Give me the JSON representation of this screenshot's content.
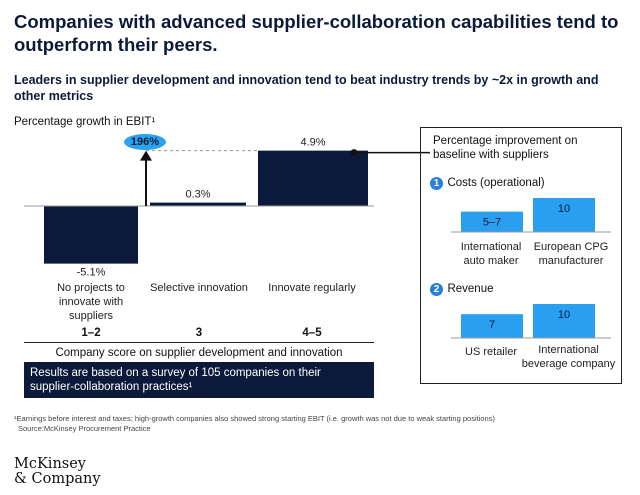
{
  "title": "Companies with advanced supplier-collaboration capabilities tend to outperform their peers.",
  "subtitle": "Leaders in supplier development and innovation tend to beat industry trends by ~2x in growth and other metrics",
  "colors": {
    "navy": "#0b1a3a",
    "accent_blue": "#2aa3ee",
    "panel_bar": "#2a9ff0"
  },
  "chart_data": [
    {
      "type": "bar",
      "ylabel": "Percentage growth in EBIT¹",
      "categories": [
        "No projects to innovate with suppliers",
        "Selective innovation",
        "Innovate regularly"
      ],
      "scores": [
        "1–2",
        "3",
        "4–5"
      ],
      "values": [
        -5.1,
        0.3,
        4.9
      ],
      "value_labels": [
        "-5.1%",
        "0.3%",
        "4.9%"
      ],
      "xlabel": "Company score on supplier development and innovation",
      "annotation": {
        "label": "196%",
        "meaning": "growth difference arrow"
      },
      "ylim": [
        -6,
        6
      ]
    },
    {
      "type": "bar",
      "title": "Percentage improvement on baseline with suppliers",
      "sections": [
        {
          "number": "1",
          "label": "Costs (operational)",
          "categories": [
            "International auto maker",
            "European CPG manufacturer"
          ],
          "values": [
            6,
            10
          ],
          "value_labels": [
            "5–7",
            "10"
          ]
        },
        {
          "number": "2",
          "label": "Revenue",
          "categories": [
            "US retailer",
            "International beverage company"
          ],
          "values": [
            7,
            10
          ],
          "value_labels": [
            "7",
            "10"
          ]
        }
      ]
    }
  ],
  "note": "Results are based on a survey of 105 companies on their supplier-collaboration practices¹",
  "footnote": "¹Earnings before interest and taxes; high-growth companies also showed strong starting EBIT (i.e. growth was not due to weak starting positions)",
  "source": "Source:McKinsey Procurement Practice",
  "logo": {
    "line1": "McKinsey",
    "line2": "& Company"
  }
}
